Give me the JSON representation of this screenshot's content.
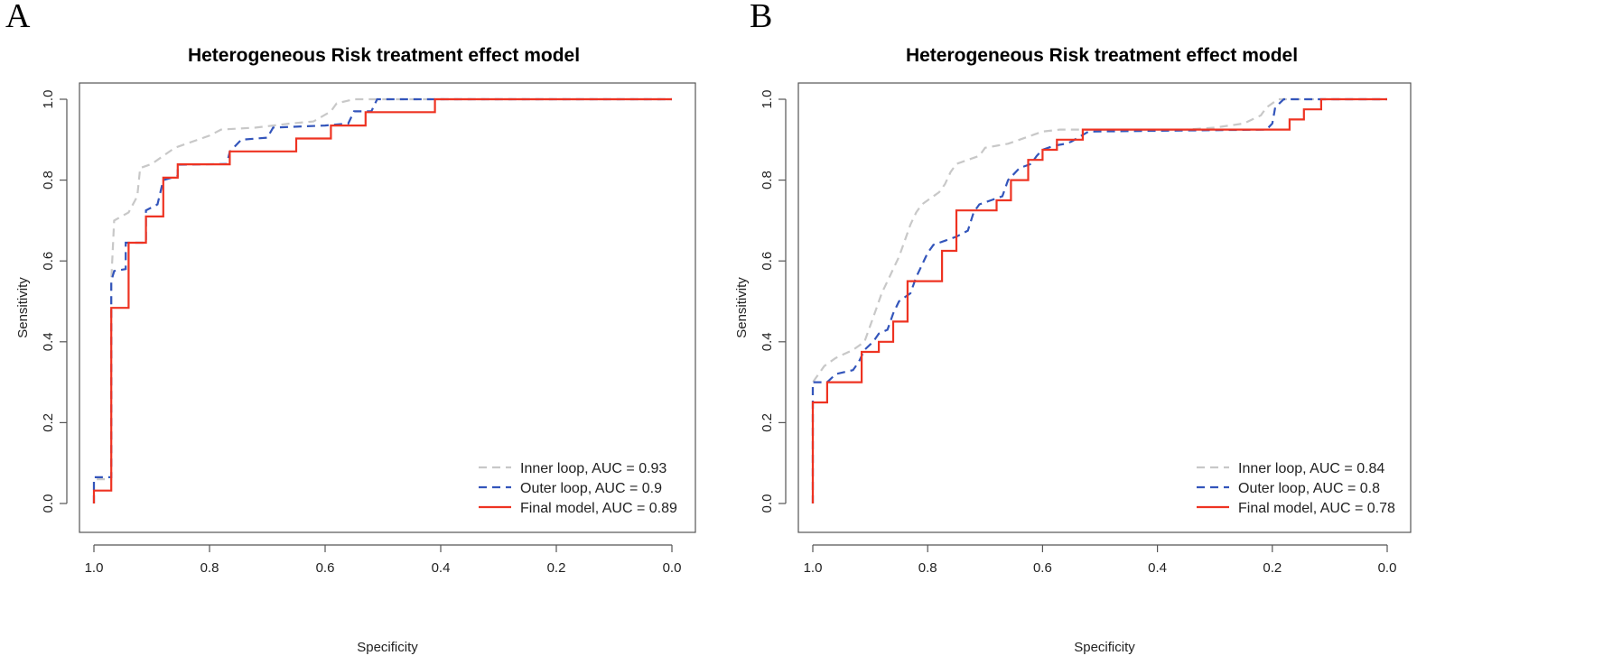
{
  "chart_data": [
    {
      "type": "line",
      "panel": "A",
      "title": "Heterogeneous Risk treatment effect model",
      "xlabel": "Specificity",
      "ylabel": "Sensitivity",
      "xlim": [
        1.0,
        0.0
      ],
      "ylim": [
        0.0,
        1.0
      ],
      "x_reversed": true,
      "xticks": [
        "1.0",
        "0.8",
        "0.6",
        "0.4",
        "0.2",
        "0.0"
      ],
      "yticks": [
        "0.0",
        "0.2",
        "0.4",
        "0.6",
        "0.8",
        "1.0"
      ],
      "grid": false,
      "legend_position": "bottom-right",
      "series": [
        {
          "name": "Inner loop, AUC = 0.93",
          "color": "#c8c8c8",
          "dash": "dashed",
          "points": [
            [
              1.0,
              0.0
            ],
            [
              1.0,
              0.06
            ],
            [
              0.97,
              0.06
            ],
            [
              0.97,
              0.55
            ],
            [
              0.965,
              0.7
            ],
            [
              0.94,
              0.72
            ],
            [
              0.925,
              0.76
            ],
            [
              0.92,
              0.83
            ],
            [
              0.9,
              0.84
            ],
            [
              0.88,
              0.86
            ],
            [
              0.86,
              0.88
            ],
            [
              0.84,
              0.89
            ],
            [
              0.82,
              0.9
            ],
            [
              0.8,
              0.91
            ],
            [
              0.78,
              0.925
            ],
            [
              0.72,
              0.93
            ],
            [
              0.66,
              0.94
            ],
            [
              0.62,
              0.945
            ],
            [
              0.59,
              0.97
            ],
            [
              0.58,
              0.99
            ],
            [
              0.55,
              1.0
            ],
            [
              0.0,
              1.0
            ]
          ]
        },
        {
          "name": "Outer loop, AUC = 0.9",
          "color": "#3355bb",
          "dash": "dashed",
          "points": [
            [
              1.0,
              0.0
            ],
            [
              1.0,
              0.065
            ],
            [
              0.97,
              0.065
            ],
            [
              0.97,
              0.55
            ],
            [
              0.965,
              0.575
            ],
            [
              0.945,
              0.58
            ],
            [
              0.945,
              0.645
            ],
            [
              0.91,
              0.645
            ],
            [
              0.91,
              0.725
            ],
            [
              0.89,
              0.74
            ],
            [
              0.88,
              0.8
            ],
            [
              0.855,
              0.81
            ],
            [
              0.855,
              0.838
            ],
            [
              0.77,
              0.84
            ],
            [
              0.765,
              0.87
            ],
            [
              0.745,
              0.9
            ],
            [
              0.7,
              0.905
            ],
            [
              0.69,
              0.93
            ],
            [
              0.6,
              0.935
            ],
            [
              0.56,
              0.94
            ],
            [
              0.55,
              0.97
            ],
            [
              0.52,
              0.97
            ],
            [
              0.51,
              1.0
            ],
            [
              0.0,
              1.0
            ]
          ]
        },
        {
          "name": "Final model, AUC = 0.89",
          "color": "#ee3322",
          "dash": "solid",
          "points": [
            [
              1.0,
              0.0
            ],
            [
              1.0,
              0.032
            ],
            [
              0.97,
              0.032
            ],
            [
              0.97,
              0.484
            ],
            [
              0.94,
              0.484
            ],
            [
              0.94,
              0.645
            ],
            [
              0.91,
              0.645
            ],
            [
              0.91,
              0.71
            ],
            [
              0.88,
              0.71
            ],
            [
              0.88,
              0.806
            ],
            [
              0.855,
              0.806
            ],
            [
              0.855,
              0.839
            ],
            [
              0.765,
              0.839
            ],
            [
              0.765,
              0.871
            ],
            [
              0.65,
              0.871
            ],
            [
              0.65,
              0.903
            ],
            [
              0.59,
              0.903
            ],
            [
              0.59,
              0.935
            ],
            [
              0.53,
              0.935
            ],
            [
              0.53,
              0.968
            ],
            [
              0.41,
              0.968
            ],
            [
              0.41,
              1.0
            ],
            [
              0.0,
              1.0
            ]
          ]
        }
      ]
    },
    {
      "type": "line",
      "panel": "B",
      "title": "Heterogeneous Risk treatment effect model",
      "xlabel": "Specificity",
      "ylabel": "Sensitivity",
      "xlim": [
        1.0,
        0.0
      ],
      "ylim": [
        0.0,
        1.0
      ],
      "x_reversed": true,
      "xticks": [
        "1.0",
        "0.8",
        "0.6",
        "0.4",
        "0.2",
        "0.0"
      ],
      "yticks": [
        "0.0",
        "0.2",
        "0.4",
        "0.6",
        "0.8",
        "1.0"
      ],
      "grid": false,
      "legend_position": "bottom-right",
      "series": [
        {
          "name": "Inner loop, AUC = 0.84",
          "color": "#c8c8c8",
          "dash": "dashed",
          "points": [
            [
              1.0,
              0.0
            ],
            [
              1.0,
              0.3
            ],
            [
              0.99,
              0.32
            ],
            [
              0.98,
              0.34
            ],
            [
              0.96,
              0.36
            ],
            [
              0.93,
              0.38
            ],
            [
              0.91,
              0.4
            ],
            [
              0.9,
              0.44
            ],
            [
              0.89,
              0.48
            ],
            [
              0.88,
              0.52
            ],
            [
              0.87,
              0.55
            ],
            [
              0.86,
              0.58
            ],
            [
              0.85,
              0.61
            ],
            [
              0.84,
              0.65
            ],
            [
              0.83,
              0.69
            ],
            [
              0.82,
              0.72
            ],
            [
              0.81,
              0.74
            ],
            [
              0.8,
              0.75
            ],
            [
              0.78,
              0.77
            ],
            [
              0.77,
              0.79
            ],
            [
              0.76,
              0.82
            ],
            [
              0.75,
              0.84
            ],
            [
              0.73,
              0.85
            ],
            [
              0.71,
              0.86
            ],
            [
              0.7,
              0.88
            ],
            [
              0.68,
              0.885
            ],
            [
              0.66,
              0.89
            ],
            [
              0.64,
              0.9
            ],
            [
              0.62,
              0.91
            ],
            [
              0.6,
              0.92
            ],
            [
              0.57,
              0.925
            ],
            [
              0.35,
              0.925
            ],
            [
              0.3,
              0.93
            ],
            [
              0.25,
              0.94
            ],
            [
              0.22,
              0.96
            ],
            [
              0.21,
              0.98
            ],
            [
              0.19,
              1.0
            ],
            [
              0.0,
              1.0
            ]
          ]
        },
        {
          "name": "Outer loop, AUC = 0.8",
          "color": "#3355bb",
          "dash": "dashed",
          "points": [
            [
              1.0,
              0.0
            ],
            [
              1.0,
              0.3
            ],
            [
              0.975,
              0.3
            ],
            [
              0.96,
              0.32
            ],
            [
              0.93,
              0.33
            ],
            [
              0.92,
              0.35
            ],
            [
              0.91,
              0.38
            ],
            [
              0.895,
              0.4
            ],
            [
              0.885,
              0.42
            ],
            [
              0.87,
              0.43
            ],
            [
              0.86,
              0.47
            ],
            [
              0.85,
              0.5
            ],
            [
              0.83,
              0.52
            ],
            [
              0.82,
              0.56
            ],
            [
              0.8,
              0.62
            ],
            [
              0.79,
              0.64
            ],
            [
              0.77,
              0.65
            ],
            [
              0.75,
              0.66
            ],
            [
              0.73,
              0.675
            ],
            [
              0.72,
              0.72
            ],
            [
              0.71,
              0.74
            ],
            [
              0.69,
              0.75
            ],
            [
              0.67,
              0.76
            ],
            [
              0.66,
              0.8
            ],
            [
              0.64,
              0.83
            ],
            [
              0.62,
              0.84
            ],
            [
              0.61,
              0.86
            ],
            [
              0.6,
              0.875
            ],
            [
              0.58,
              0.885
            ],
            [
              0.56,
              0.89
            ],
            [
              0.55,
              0.895
            ],
            [
              0.52,
              0.92
            ],
            [
              0.21,
              0.925
            ],
            [
              0.2,
              0.94
            ],
            [
              0.195,
              0.98
            ],
            [
              0.18,
              1.0
            ],
            [
              0.0,
              1.0
            ]
          ]
        },
        {
          "name": "Final model, AUC = 0.78",
          "color": "#ee3322",
          "dash": "solid",
          "points": [
            [
              1.0,
              0.0
            ],
            [
              1.0,
              0.25
            ],
            [
              0.975,
              0.25
            ],
            [
              0.975,
              0.3
            ],
            [
              0.915,
              0.3
            ],
            [
              0.915,
              0.375
            ],
            [
              0.885,
              0.375
            ],
            [
              0.885,
              0.4
            ],
            [
              0.86,
              0.4
            ],
            [
              0.86,
              0.45
            ],
            [
              0.835,
              0.45
            ],
            [
              0.835,
              0.55
            ],
            [
              0.775,
              0.55
            ],
            [
              0.775,
              0.625
            ],
            [
              0.75,
              0.625
            ],
            [
              0.75,
              0.725
            ],
            [
              0.68,
              0.725
            ],
            [
              0.68,
              0.75
            ],
            [
              0.655,
              0.75
            ],
            [
              0.655,
              0.8
            ],
            [
              0.625,
              0.8
            ],
            [
              0.625,
              0.85
            ],
            [
              0.6,
              0.85
            ],
            [
              0.6,
              0.875
            ],
            [
              0.575,
              0.875
            ],
            [
              0.575,
              0.9
            ],
            [
              0.53,
              0.9
            ],
            [
              0.53,
              0.925
            ],
            [
              0.17,
              0.925
            ],
            [
              0.17,
              0.95
            ],
            [
              0.145,
              0.95
            ],
            [
              0.145,
              0.975
            ],
            [
              0.115,
              0.975
            ],
            [
              0.115,
              1.0
            ],
            [
              0.0,
              1.0
            ]
          ]
        }
      ]
    }
  ]
}
